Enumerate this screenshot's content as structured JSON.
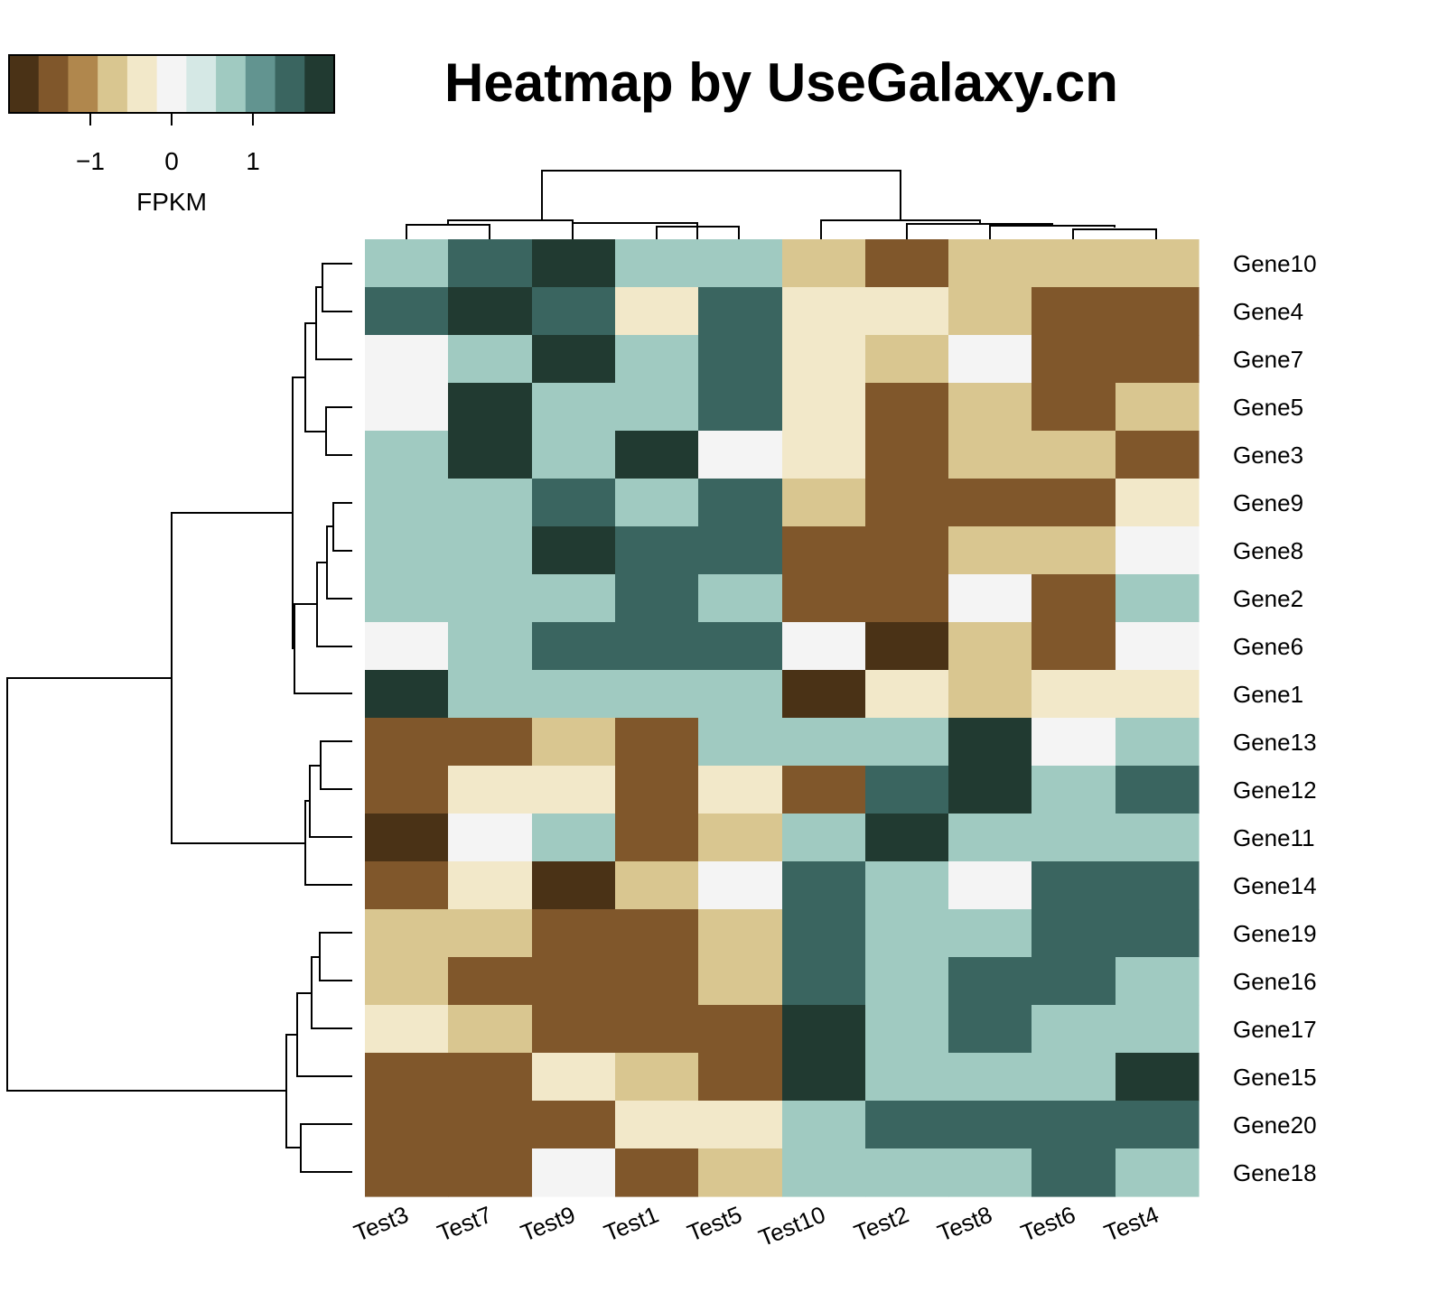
{
  "chart_data": {
    "type": "heatmap",
    "title": "Heatmap by UseGalaxy.cn",
    "columns": [
      "Test3",
      "Test7",
      "Test9",
      "Test1",
      "Test5",
      "Test10",
      "Test2",
      "Test8",
      "Test6",
      "Test4"
    ],
    "rows": [
      "Gene10",
      "Gene4",
      "Gene7",
      "Gene5",
      "Gene3",
      "Gene9",
      "Gene8",
      "Gene2",
      "Gene6",
      "Gene1",
      "Gene13",
      "Gene12",
      "Gene11",
      "Gene14",
      "Gene19",
      "Gene16",
      "Gene17",
      "Gene15",
      "Gene20",
      "Gene18"
    ],
    "values": [
      [
        0.9,
        1.3,
        2.0,
        0.6,
        0.6,
        -0.9,
        -1.6,
        -0.9,
        -0.9,
        -0.9
      ],
      [
        1.3,
        1.7,
        1.3,
        -0.5,
        1.3,
        -0.5,
        -0.5,
        -0.9,
        -1.3,
        -1.3
      ],
      [
        0.1,
        0.6,
        2.0,
        0.6,
        1.3,
        -0.5,
        -0.9,
        0.1,
        -1.6,
        -1.6
      ],
      [
        0.1,
        1.7,
        0.9,
        0.9,
        1.3,
        -0.5,
        -1.3,
        -0.9,
        -1.3,
        -0.9
      ],
      [
        0.6,
        2.0,
        0.6,
        1.7,
        0.1,
        -0.5,
        -1.3,
        -0.9,
        -0.9,
        -1.3
      ],
      [
        0.9,
        0.9,
        1.3,
        0.9,
        1.3,
        -0.9,
        -1.6,
        -1.3,
        -1.3,
        -0.5
      ],
      [
        0.6,
        0.6,
        1.7,
        1.3,
        1.3,
        -1.3,
        -1.6,
        -0.9,
        -0.9,
        0.1
      ],
      [
        0.6,
        0.6,
        0.9,
        1.3,
        0.9,
        -1.3,
        -1.6,
        0.1,
        -1.6,
        0.9
      ],
      [
        0.1,
        0.9,
        1.3,
        1.3,
        1.3,
        0.1,
        -2.0,
        -0.9,
        -1.3,
        0.1
      ],
      [
        1.7,
        0.9,
        0.6,
        0.6,
        0.9,
        -2.0,
        -0.5,
        -0.9,
        -0.5,
        -0.5
      ],
      [
        -1.3,
        -1.3,
        -0.9,
        -1.3,
        0.9,
        0.6,
        0.6,
        2.0,
        0.1,
        0.9
      ],
      [
        -1.3,
        -0.5,
        -0.5,
        -1.6,
        -0.5,
        -1.3,
        1.3,
        1.7,
        0.9,
        1.3
      ],
      [
        -2.0,
        0.1,
        0.6,
        -1.3,
        -0.9,
        0.6,
        1.7,
        0.6,
        0.6,
        0.9
      ],
      [
        -1.6,
        -0.5,
        -2.0,
        -0.9,
        0.1,
        1.3,
        0.6,
        0.1,
        1.3,
        1.3
      ],
      [
        -0.9,
        -0.9,
        -1.3,
        -1.6,
        -0.9,
        1.3,
        0.9,
        0.9,
        1.3,
        1.3
      ],
      [
        -0.9,
        -1.3,
        -1.3,
        -1.3,
        -0.9,
        1.3,
        0.6,
        1.3,
        1.3,
        0.9
      ],
      [
        -0.5,
        -0.9,
        -1.3,
        -1.3,
        -1.3,
        1.7,
        0.6,
        1.3,
        0.9,
        0.9
      ],
      [
        -1.3,
        -1.6,
        -0.5,
        -0.9,
        -1.3,
        1.7,
        0.6,
        0.9,
        0.9,
        1.7
      ],
      [
        -1.6,
        -1.6,
        -1.3,
        -0.5,
        -0.5,
        0.6,
        1.3,
        1.3,
        1.3,
        1.3
      ],
      [
        -1.3,
        -1.6,
        0.1,
        -1.3,
        -0.9,
        0.9,
        0.9,
        0.9,
        1.3,
        0.9
      ]
    ],
    "color_key": {
      "label": "FPKM",
      "ticks": [
        -1,
        0,
        1
      ],
      "tick_labels": [
        "−1",
        "0",
        "1"
      ],
      "range": [
        -2.0,
        2.0
      ],
      "colors": [
        "#4a3216",
        "#80572b",
        "#b0874d",
        "#d9c690",
        "#f2e8c9",
        "#f4f4f4",
        "#d5e8e5",
        "#a0cac1",
        "#629490",
        "#3a6560",
        "#213a31"
      ]
    },
    "legend": "top-left",
    "row_dendrogram": "left",
    "column_dendrogram": "top"
  }
}
